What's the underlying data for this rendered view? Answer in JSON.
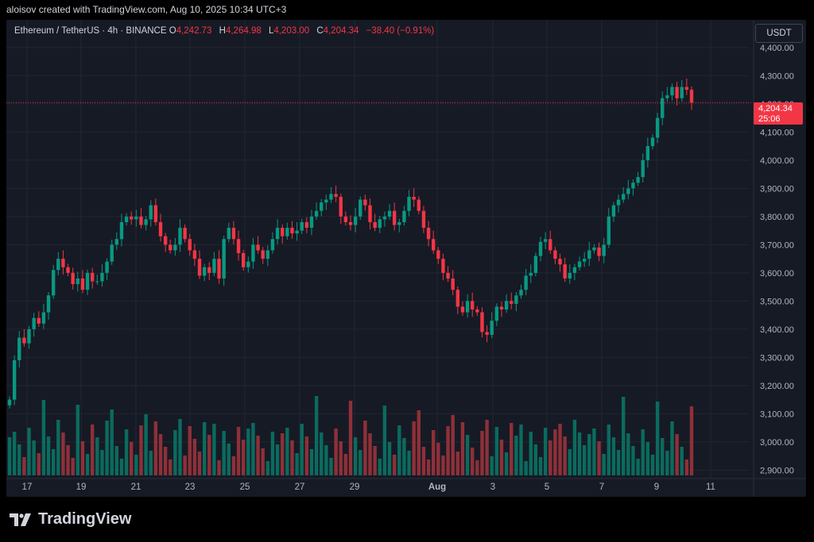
{
  "credit": "aloisov created with TradingView.com, Aug 10, 2025 10:34 UTC+3",
  "legend": {
    "symbol": "Ethereum / TetherUS · 4h · BINANCE",
    "o_label": "O",
    "o": "4,242.73",
    "h_label": "H",
    "h": "4,264.98",
    "l_label": "L",
    "l": "4,203.00",
    "c_label": "C",
    "c": "4,204.34",
    "change": "−38.40 (−0.91%)"
  },
  "currency": "USDT",
  "price_tag": {
    "price": "4,204.34",
    "countdown": "25:06"
  },
  "brand": "TradingView",
  "colors": {
    "up": "#089981",
    "down": "#f23645",
    "up_vol": "#0a6b5e",
    "down_vol": "#8e3038",
    "bg": "#161a25",
    "grid": "#232632"
  },
  "chart_data": {
    "type": "candlestick",
    "y_ticks": [
      "4,400.00",
      "4,300.00",
      "4,200.00",
      "4,100.00",
      "4,000.00",
      "3,900.00",
      "3,800.00",
      "3,700.00",
      "3,600.00",
      "3,500.00",
      "3,400.00",
      "3,300.00",
      "3,200.00",
      "3,100.00",
      "3,000.00",
      "2,900.00"
    ],
    "y_tick_values": [
      4400,
      4300,
      4200,
      4100,
      4000,
      3900,
      3800,
      3700,
      3600,
      3500,
      3400,
      3300,
      3200,
      3100,
      3000,
      2900
    ],
    "x_ticks": [
      "17",
      "19",
      "21",
      "23",
      "25",
      "27",
      "29",
      "Aug",
      "3",
      "5",
      "7",
      "9",
      "11"
    ],
    "ylim": [
      2870,
      4470
    ],
    "last_price": 4204.34,
    "closes": [
      3150,
      3290,
      3370,
      3350,
      3400,
      3440,
      3420,
      3460,
      3520,
      3610,
      3650,
      3620,
      3600,
      3560,
      3580,
      3540,
      3600,
      3570,
      3570,
      3600,
      3640,
      3700,
      3720,
      3780,
      3800,
      3790,
      3800,
      3770,
      3790,
      3840,
      3780,
      3730,
      3700,
      3680,
      3700,
      3760,
      3720,
      3680,
      3650,
      3590,
      3620,
      3600,
      3650,
      3580,
      3720,
      3760,
      3720,
      3670,
      3620,
      3640,
      3700,
      3680,
      3650,
      3680,
      3720,
      3760,
      3730,
      3760,
      3740,
      3750,
      3780,
      3760,
      3800,
      3820,
      3850,
      3860,
      3880,
      3870,
      3800,
      3780,
      3770,
      3800,
      3860,
      3840,
      3780,
      3760,
      3790,
      3800,
      3820,
      3770,
      3780,
      3820,
      3870,
      3860,
      3820,
      3760,
      3720,
      3680,
      3650,
      3600,
      3580,
      3540,
      3480,
      3460,
      3500,
      3470,
      3460,
      3390,
      3380,
      3430,
      3480,
      3470,
      3500,
      3490,
      3520,
      3540,
      3590,
      3600,
      3660,
      3710,
      3720,
      3680,
      3650,
      3630,
      3580,
      3600,
      3620,
      3640,
      3650,
      3680,
      3690,
      3660,
      3700,
      3800,
      3840,
      3860,
      3880,
      3900,
      3920,
      3940,
      4000,
      4050,
      4080,
      4150,
      4220,
      4230,
      4260,
      4220,
      4260,
      4250,
      4204.34
    ],
    "volume_max": 100
  }
}
